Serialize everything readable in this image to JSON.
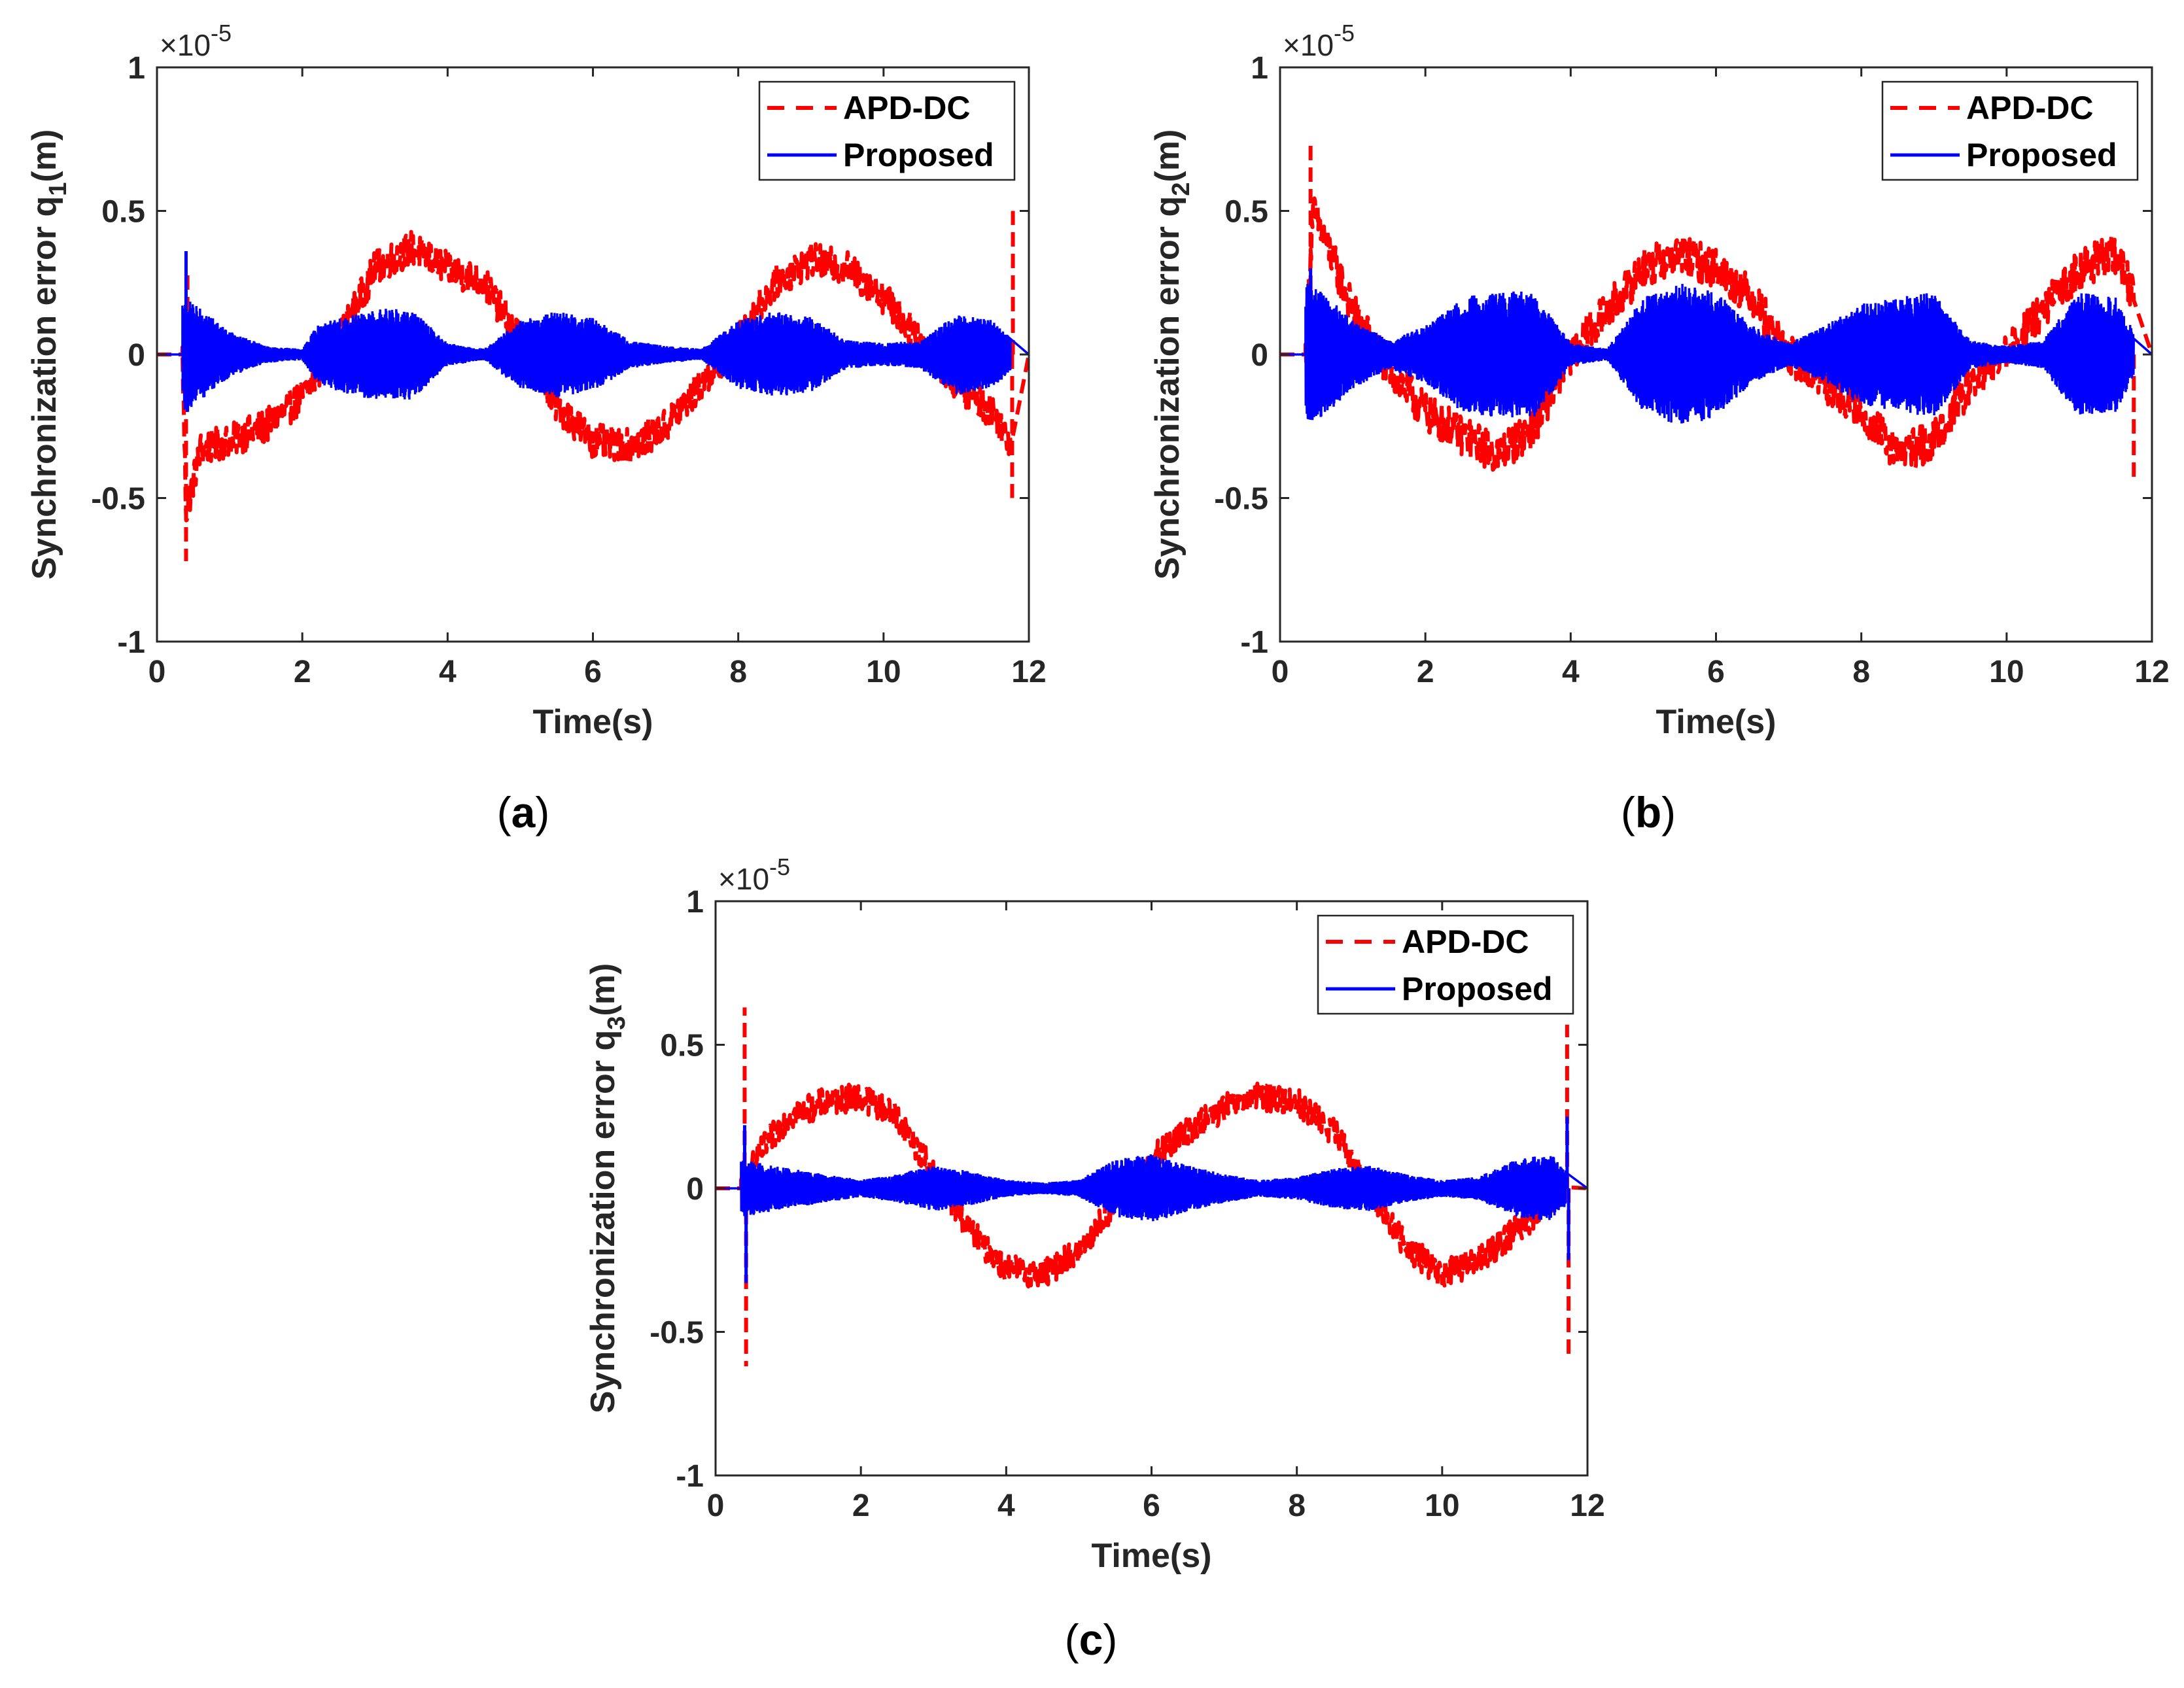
{
  "figure": {
    "captions": [
      "a",
      "b",
      "c"
    ]
  },
  "colors": {
    "apd": "#ff0000",
    "proposed": "#0000ff",
    "axis": "#262626"
  },
  "chart_data": [
    {
      "id": "a",
      "type": "line",
      "ylabel_main": "Synchronization error q",
      "ylabel_sub": "1",
      "ylabel_tail": "(m)",
      "xlabel": "Time(s)",
      "exponent_base": "×10",
      "exponent_power": "-5",
      "xlim": [
        0,
        12
      ],
      "ylim": [
        -1,
        1
      ],
      "xticks": [
        "0",
        "2",
        "4",
        "6",
        "8",
        "10",
        "12"
      ],
      "yticks": [
        "-1",
        "-0.5",
        "0",
        "0.5",
        "1"
      ],
      "legend_position": "top-right",
      "series": [
        {
          "name": "APD-DC",
          "style": "dashed",
          "color": "#ff0000",
          "noise": 0.06,
          "profile": [
            [
              0.35,
              0.0
            ],
            [
              0.4,
              -0.55
            ],
            [
              0.6,
              -0.33
            ],
            [
              1.0,
              -0.3
            ],
            [
              1.5,
              -0.25
            ],
            [
              2.0,
              -0.15
            ],
            [
              2.5,
              0.05
            ],
            [
              3.0,
              0.3
            ],
            [
              3.5,
              0.37
            ],
            [
              4.0,
              0.3
            ],
            [
              4.5,
              0.25
            ],
            [
              5.0,
              0.05
            ],
            [
              5.5,
              -0.18
            ],
            [
              6.0,
              -0.3
            ],
            [
              6.5,
              -0.32
            ],
            [
              7.0,
              -0.25
            ],
            [
              7.5,
              -0.1
            ],
            [
              8.0,
              0.05
            ],
            [
              8.5,
              0.25
            ],
            [
              9.0,
              0.33
            ],
            [
              9.5,
              0.3
            ],
            [
              10.0,
              0.2
            ],
            [
              10.5,
              0.05
            ],
            [
              11.0,
              -0.1
            ],
            [
              11.5,
              -0.2
            ],
            [
              11.75,
              -0.3
            ]
          ],
          "spikes": [
            [
              0.4,
              -0.72
            ],
            [
              0.42,
              0.3
            ],
            [
              11.78,
              0.5
            ],
            [
              11.77,
              -0.5
            ]
          ]
        },
        {
          "name": "Proposed",
          "style": "solid",
          "color": "#0000ff",
          "noise": 0.0,
          "envelope": [
            [
              0.35,
              0.2
            ],
            [
              0.5,
              0.18
            ],
            [
              1.0,
              0.08
            ],
            [
              1.5,
              0.03
            ],
            [
              2.0,
              0.02
            ],
            [
              2.2,
              0.1
            ],
            [
              2.5,
              0.13
            ],
            [
              3.0,
              0.16
            ],
            [
              3.5,
              0.16
            ],
            [
              4.0,
              0.04
            ],
            [
              4.5,
              0.02
            ],
            [
              5.0,
              0.12
            ],
            [
              5.5,
              0.15
            ],
            [
              6.0,
              0.13
            ],
            [
              6.5,
              0.05
            ],
            [
              7.0,
              0.03
            ],
            [
              7.5,
              0.02
            ],
            [
              8.0,
              0.12
            ],
            [
              8.5,
              0.15
            ],
            [
              9.0,
              0.13
            ],
            [
              9.5,
              0.05
            ],
            [
              10.0,
              0.04
            ],
            [
              10.5,
              0.05
            ],
            [
              11.0,
              0.14
            ],
            [
              11.5,
              0.12
            ],
            [
              11.75,
              0.06
            ]
          ],
          "spikes": [
            [
              0.4,
              0.36
            ],
            [
              0.42,
              -0.2
            ]
          ]
        }
      ]
    },
    {
      "id": "b",
      "type": "line",
      "ylabel_main": "Synchronization error q",
      "ylabel_sub": "2",
      "ylabel_tail": "(m)",
      "xlabel": "Time(s)",
      "exponent_base": "×10",
      "exponent_power": "-5",
      "xlim": [
        0,
        12
      ],
      "ylim": [
        -1,
        1
      ],
      "xticks": [
        "0",
        "2",
        "4",
        "6",
        "8",
        "10",
        "12"
      ],
      "yticks": [
        "-1",
        "-0.5",
        "0",
        "0.5",
        "1"
      ],
      "legend_position": "top-right",
      "series": [
        {
          "name": "APD-DC",
          "style": "dashed",
          "color": "#ff0000",
          "noise": 0.07,
          "profile": [
            [
              0.35,
              0.0
            ],
            [
              0.45,
              0.5
            ],
            [
              0.7,
              0.35
            ],
            [
              1.0,
              0.15
            ],
            [
              1.5,
              -0.05
            ],
            [
              2.0,
              -0.2
            ],
            [
              2.5,
              -0.28
            ],
            [
              3.0,
              -0.35
            ],
            [
              3.5,
              -0.25
            ],
            [
              4.0,
              0.0
            ],
            [
              4.5,
              0.15
            ],
            [
              5.0,
              0.3
            ],
            [
              5.5,
              0.35
            ],
            [
              6.0,
              0.3
            ],
            [
              6.5,
              0.2
            ],
            [
              7.0,
              0.0
            ],
            [
              7.5,
              -0.1
            ],
            [
              8.0,
              -0.2
            ],
            [
              8.5,
              -0.35
            ],
            [
              9.0,
              -0.3
            ],
            [
              9.5,
              -0.1
            ],
            [
              10.0,
              0.0
            ],
            [
              10.5,
              0.15
            ],
            [
              11.0,
              0.3
            ],
            [
              11.5,
              0.35
            ],
            [
              11.75,
              0.2
            ]
          ],
          "spikes": [
            [
              0.42,
              0.73
            ],
            [
              11.75,
              -0.45
            ]
          ]
        },
        {
          "name": "Proposed",
          "style": "solid",
          "color": "#0000ff",
          "noise": 0.0,
          "envelope": [
            [
              0.35,
              0.25
            ],
            [
              0.6,
              0.22
            ],
            [
              1.0,
              0.12
            ],
            [
              1.5,
              0.05
            ],
            [
              2.0,
              0.1
            ],
            [
              2.5,
              0.2
            ],
            [
              3.0,
              0.22
            ],
            [
              3.5,
              0.22
            ],
            [
              4.0,
              0.04
            ],
            [
              4.5,
              0.02
            ],
            [
              5.0,
              0.2
            ],
            [
              5.5,
              0.25
            ],
            [
              6.0,
              0.22
            ],
            [
              6.5,
              0.1
            ],
            [
              7.0,
              0.04
            ],
            [
              7.5,
              0.1
            ],
            [
              8.0,
              0.18
            ],
            [
              8.5,
              0.2
            ],
            [
              9.0,
              0.22
            ],
            [
              9.5,
              0.05
            ],
            [
              10.0,
              0.03
            ],
            [
              10.5,
              0.05
            ],
            [
              11.0,
              0.22
            ],
            [
              11.5,
              0.2
            ],
            [
              11.75,
              0.08
            ]
          ],
          "spikes": [
            [
              0.42,
              0.3
            ]
          ]
        }
      ]
    },
    {
      "id": "c",
      "type": "line",
      "ylabel_main": "Synchronization error q",
      "ylabel_sub": "3",
      "ylabel_tail": "(m)",
      "xlabel": "Time(s)",
      "exponent_base": "×10",
      "exponent_power": "-5",
      "xlim": [
        0,
        12
      ],
      "ylim": [
        -1,
        1
      ],
      "xticks": [
        "0",
        "2",
        "4",
        "6",
        "8",
        "10",
        "12"
      ],
      "yticks": [
        "-1",
        "-0.5",
        "0",
        "0.5",
        "1"
      ],
      "legend_position": "top-right",
      "series": [
        {
          "name": "APD-DC",
          "style": "dashed",
          "color": "#ff0000",
          "noise": 0.05,
          "profile": [
            [
              0.35,
              0.0
            ],
            [
              0.6,
              0.12
            ],
            [
              1.0,
              0.25
            ],
            [
              1.5,
              0.3
            ],
            [
              2.0,
              0.32
            ],
            [
              2.5,
              0.25
            ],
            [
              3.0,
              0.05
            ],
            [
              3.5,
              -0.15
            ],
            [
              4.0,
              -0.28
            ],
            [
              4.5,
              -0.3
            ],
            [
              5.0,
              -0.22
            ],
            [
              5.5,
              -0.05
            ],
            [
              6.0,
              0.1
            ],
            [
              6.5,
              0.2
            ],
            [
              7.0,
              0.28
            ],
            [
              7.5,
              0.32
            ],
            [
              8.0,
              0.3
            ],
            [
              8.5,
              0.2
            ],
            [
              9.0,
              0.0
            ],
            [
              9.5,
              -0.2
            ],
            [
              10.0,
              -0.3
            ],
            [
              10.5,
              -0.25
            ],
            [
              11.0,
              -0.15
            ],
            [
              11.5,
              -0.05
            ],
            [
              11.7,
              0.0
            ]
          ],
          "spikes": [
            [
              0.4,
              0.63
            ],
            [
              0.42,
              -0.62
            ],
            [
              11.72,
              0.57
            ],
            [
              11.74,
              -0.6
            ]
          ]
        },
        {
          "name": "Proposed",
          "style": "solid",
          "color": "#0000ff",
          "noise": 0.0,
          "envelope": [
            [
              0.35,
              0.1
            ],
            [
              0.6,
              0.09
            ],
            [
              1.0,
              0.07
            ],
            [
              1.5,
              0.05
            ],
            [
              2.0,
              0.03
            ],
            [
              2.5,
              0.05
            ],
            [
              3.0,
              0.08
            ],
            [
              3.5,
              0.06
            ],
            [
              4.0,
              0.03
            ],
            [
              4.5,
              0.02
            ],
            [
              5.0,
              0.03
            ],
            [
              5.5,
              0.1
            ],
            [
              6.0,
              0.12
            ],
            [
              6.5,
              0.08
            ],
            [
              7.0,
              0.05
            ],
            [
              7.5,
              0.03
            ],
            [
              8.0,
              0.04
            ],
            [
              8.5,
              0.07
            ],
            [
              9.0,
              0.08
            ],
            [
              9.5,
              0.05
            ],
            [
              10.0,
              0.03
            ],
            [
              10.5,
              0.04
            ],
            [
              11.0,
              0.1
            ],
            [
              11.5,
              0.12
            ],
            [
              11.7,
              0.06
            ]
          ],
          "spikes": [
            [
              0.4,
              0.22
            ],
            [
              0.42,
              -0.33
            ],
            [
              11.72,
              0.25
            ],
            [
              11.74,
              -0.25
            ]
          ]
        }
      ]
    }
  ]
}
